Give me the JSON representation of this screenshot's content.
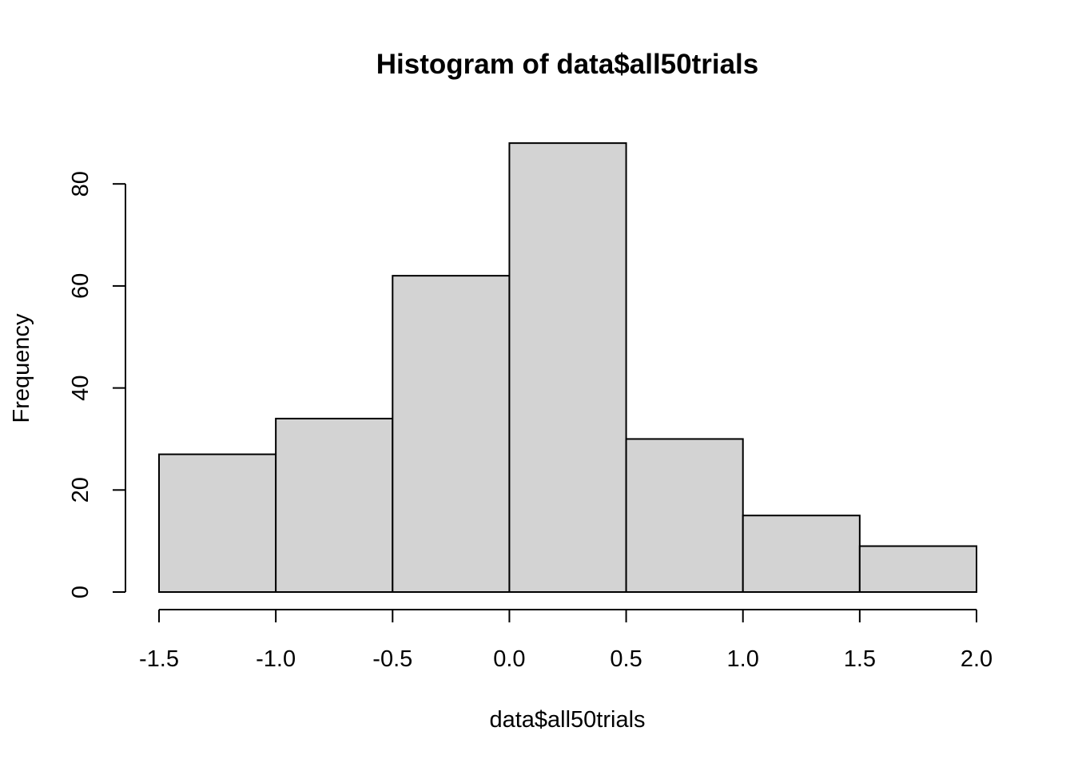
{
  "chart_data": {
    "type": "bar",
    "title": "Histogram of data$all50trials",
    "xlabel": "data$all50trials",
    "ylabel": "Frequency",
    "bins": [
      {
        "start": -1.5,
        "end": -1.0,
        "count": 27
      },
      {
        "start": -1.0,
        "end": -0.5,
        "count": 34
      },
      {
        "start": -0.5,
        "end": 0.0,
        "count": 62
      },
      {
        "start": 0.0,
        "end": 0.5,
        "count": 88
      },
      {
        "start": 0.5,
        "end": 1.0,
        "count": 30
      },
      {
        "start": 1.0,
        "end": 1.5,
        "count": 15
      },
      {
        "start": 1.5,
        "end": 2.0,
        "count": 9
      }
    ],
    "xlim": [
      -1.5,
      2.0
    ],
    "x_ticks": [
      -1.5,
      -1.0,
      -0.5,
      0.0,
      0.5,
      1.0,
      1.5,
      2.0
    ],
    "x_tick_labels": [
      "-1.5",
      "-1.0",
      "-0.5",
      "0.0",
      "0.5",
      "1.0",
      "1.5",
      "2.0"
    ],
    "y_ticks": [
      0,
      20,
      40,
      60,
      80
    ],
    "y_tick_labels": [
      "0",
      "20",
      "40",
      "60",
      "80"
    ],
    "grid": false,
    "bar_fill": "#d3d3d3",
    "bar_stroke": "#000000"
  }
}
